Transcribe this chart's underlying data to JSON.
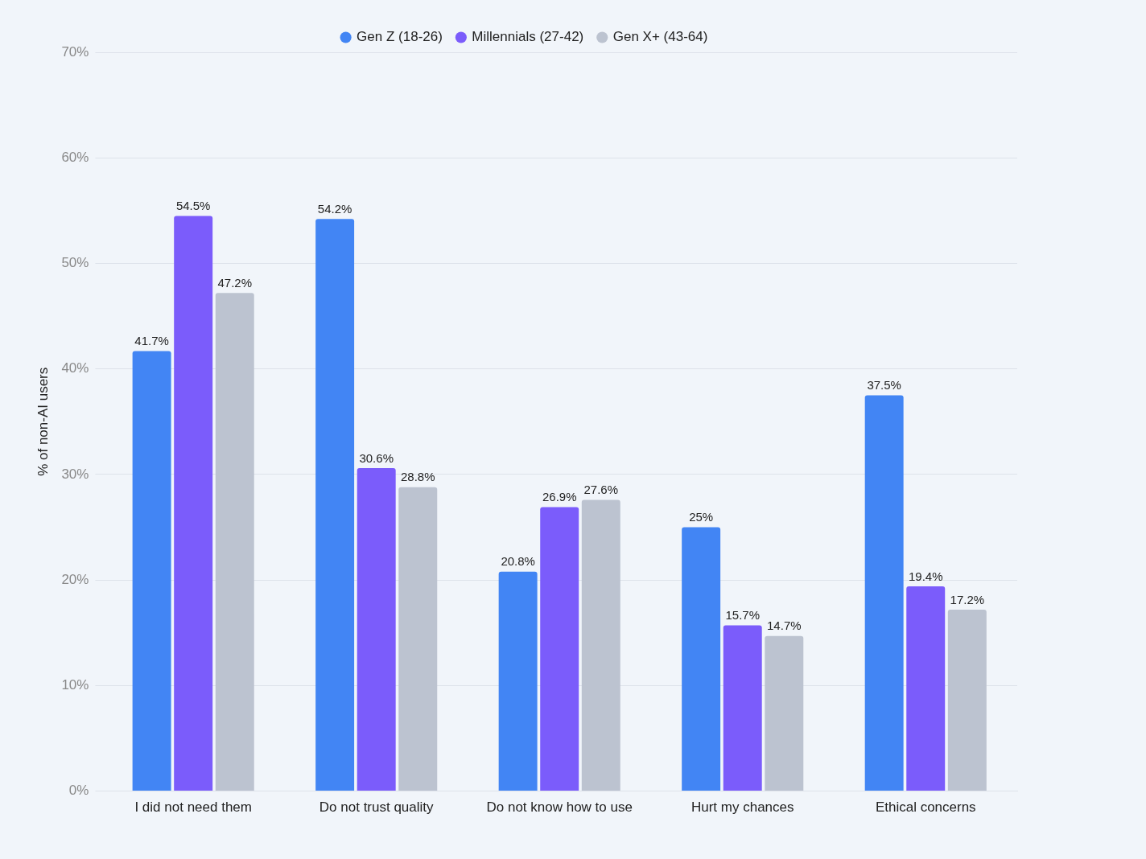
{
  "chart_data": {
    "type": "bar",
    "categories": [
      "I did not need them",
      "Do not trust quality",
      "Do not know how to use",
      "Hurt my chances",
      "Ethical concerns"
    ],
    "series": [
      {
        "name": "Gen Z (18-26)",
        "color": "#4285f4",
        "values": [
          41.7,
          54.2,
          20.8,
          25,
          37.5
        ],
        "value_labels": [
          "41.7%",
          "54.2%",
          "20.8%",
          "25%",
          "37.5%"
        ]
      },
      {
        "name": "Millennials (27-42)",
        "color": "#7b5cfb",
        "values": [
          54.5,
          30.6,
          26.9,
          15.7,
          19.4
        ],
        "value_labels": [
          "54.5%",
          "30.6%",
          "26.9%",
          "15.7%",
          "19.4%"
        ]
      },
      {
        "name": "Gen X+ (43-64)",
        "color": "#bcc3d0",
        "values": [
          47.2,
          28.8,
          27.6,
          14.7,
          17.2
        ],
        "value_labels": [
          "47.2%",
          "28.8%",
          "27.6%",
          "14.7%",
          "17.2%"
        ]
      }
    ],
    "ylabel": "% of non-AI users",
    "ylim": [
      0,
      70
    ],
    "yticks": [
      {
        "value": 0,
        "label": "0%"
      },
      {
        "value": 10,
        "label": "10%"
      },
      {
        "value": 20,
        "label": "20%"
      },
      {
        "value": 30,
        "label": "30%"
      },
      {
        "value": 40,
        "label": "40%"
      },
      {
        "value": 50,
        "label": "50%"
      },
      {
        "value": 60,
        "label": "60%"
      },
      {
        "value": 70,
        "label": "70%"
      }
    ],
    "grid": "y",
    "legend": "top",
    "marker": "circle"
  }
}
